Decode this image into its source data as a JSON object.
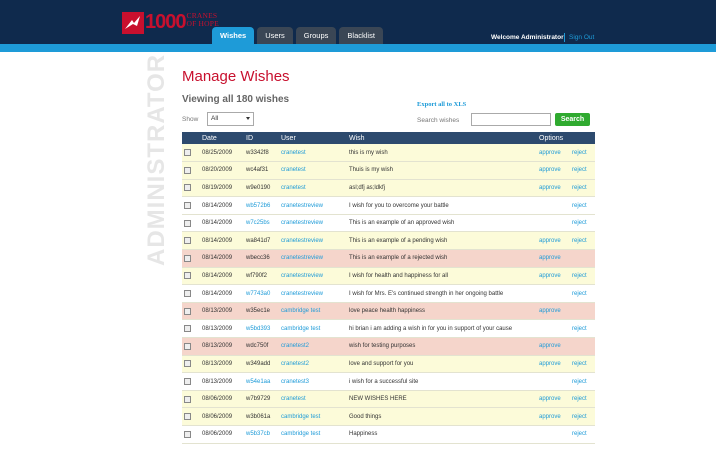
{
  "logo": {
    "number": "1000",
    "line1": "CRANES",
    "line2": "OF HOPE"
  },
  "nav": {
    "tabs": [
      "Wishes",
      "Users",
      "Groups",
      "Blacklist"
    ],
    "active": 0
  },
  "header": {
    "welcome": "Welcome Administrator",
    "signout": "Sign Out"
  },
  "sidebar": {
    "vertical_label": "ADMINISTRATOR"
  },
  "page": {
    "title": "Manage Wishes",
    "subtitle": "Viewing all 180 wishes"
  },
  "controls": {
    "show_label": "Show",
    "show_value": "All",
    "export_label": "Export all to XLS",
    "search_label": "Search wishes",
    "search_value": "",
    "search_button": "Search"
  },
  "table": {
    "columns": [
      "",
      "Date",
      "ID",
      "User",
      "Wish",
      "Options"
    ],
    "rows": [
      {
        "style": "yellow",
        "date": "08/25/2009",
        "id": "w3342f8",
        "id_link": false,
        "user": "cranetest",
        "wish": "this is my wish",
        "approve": "approve",
        "reject": "reject"
      },
      {
        "style": "yellow",
        "date": "08/20/2009",
        "id": "wc4af31",
        "id_link": false,
        "user": "cranetest",
        "wish": "Thuis is my wish",
        "approve": "approve",
        "reject": "reject"
      },
      {
        "style": "yellow",
        "date": "08/19/2009",
        "id": "w9e0190",
        "id_link": false,
        "user": "cranetest",
        "wish": "asl;dfj as;ldkfj",
        "approve": "approve",
        "reject": "reject"
      },
      {
        "style": "white",
        "date": "08/14/2009",
        "id": "wb572b6",
        "id_link": true,
        "user": "cranetestreview",
        "wish": "I wish for you to overcome your battle",
        "approve": "",
        "reject": "reject"
      },
      {
        "style": "white",
        "date": "08/14/2009",
        "id": "w7c25bs",
        "id_link": true,
        "user": "cranetestreview",
        "wish": "This is an example of an approved wish",
        "approve": "",
        "reject": "reject"
      },
      {
        "style": "yellow",
        "date": "08/14/2009",
        "id": "wa841d7",
        "id_link": false,
        "user": "cranetestreview",
        "wish": "This is an example of a pending wish",
        "approve": "approve",
        "reject": "reject"
      },
      {
        "style": "pink",
        "date": "08/14/2009",
        "id": "wbecc36",
        "id_link": false,
        "user": "cranetestreview",
        "wish": "This is an example of a rejected wish",
        "approve": "approve",
        "reject": ""
      },
      {
        "style": "yellow",
        "date": "08/14/2009",
        "id": "wf790f2",
        "id_link": false,
        "user": "cranetestreview",
        "wish": "I wish for health and happiness for all",
        "approve": "approve",
        "reject": "reject"
      },
      {
        "style": "white",
        "date": "08/14/2009",
        "id": "w7743a0",
        "id_link": true,
        "user": "cranetestreview",
        "wish": "I wish for Mrs. E's continued strength in her ongoing battle",
        "approve": "",
        "reject": "reject"
      },
      {
        "style": "pink",
        "date": "08/13/2009",
        "id": "w35ec1e",
        "id_link": false,
        "user": "cambridge test",
        "wish": "love peace health happiness",
        "approve": "approve",
        "reject": ""
      },
      {
        "style": "white",
        "date": "08/13/2009",
        "id": "w5bd393",
        "id_link": true,
        "user": "cambridge test",
        "wish": "hi brian i am adding a wish in for you in support of your cause",
        "approve": "",
        "reject": "reject"
      },
      {
        "style": "pink",
        "date": "08/13/2009",
        "id": "wdc750f",
        "id_link": false,
        "user": "cranetest2",
        "wish": "wish for testing purposes",
        "approve": "approve",
        "reject": ""
      },
      {
        "style": "yellow",
        "date": "08/13/2009",
        "id": "w349add",
        "id_link": false,
        "user": "cranetest2",
        "wish": "love and support for you",
        "approve": "approve",
        "reject": "reject"
      },
      {
        "style": "white",
        "date": "08/13/2009",
        "id": "w54e1aa",
        "id_link": true,
        "user": "cranetest3",
        "wish": "i wish for a successful site",
        "approve": "",
        "reject": "reject"
      },
      {
        "style": "yellow",
        "date": "08/06/2009",
        "id": "w7b9729",
        "id_link": false,
        "user": "cranetest",
        "wish": "NEW WISHES HERE",
        "approve": "approve",
        "reject": "reject"
      },
      {
        "style": "yellow",
        "date": "08/06/2009",
        "id": "w3b061a",
        "id_link": false,
        "user": "cambridge test",
        "wish": "Good things",
        "approve": "approve",
        "reject": "reject"
      },
      {
        "style": "white",
        "date": "08/06/2009",
        "id": "w5b37cb",
        "id_link": true,
        "user": "cambridge test",
        "wish": "Happiness",
        "approve": "",
        "reject": "reject"
      }
    ]
  },
  "colors": {
    "navy": "#0f2a4d",
    "accent_blue": "#1e9bd8",
    "brand_red": "#c8102e",
    "search_green": "#2faa2f"
  }
}
